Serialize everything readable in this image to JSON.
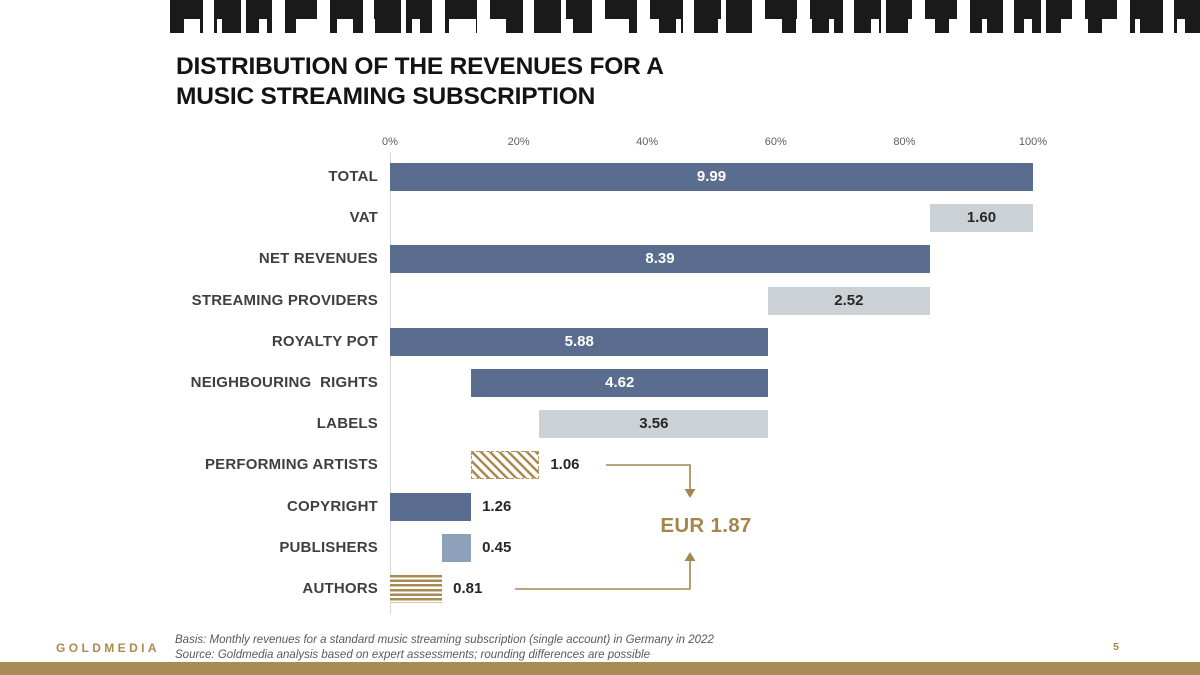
{
  "slide": {
    "title_line1": "DISTRIBUTION OF THE REVENUES FOR A",
    "title_line2": "MUSIC STREAMING SUBSCRIPTION",
    "logo_text": "GOLDMEDIA",
    "footnote_line1": "Basis: Monthly revenues for a standard music streaming subscription (single account) in Germany in 2022",
    "footnote_line2": "Source: Goldmedia analysis based on expert assessments; rounding differences are possible",
    "page_number": "5"
  },
  "colors": {
    "bar_slate": "#5a6d8e",
    "bar_light_gray": "#ccd1d6",
    "bar_light_slate": "#8ea1bb",
    "hatch_gold": "#ab8a50",
    "accent_gold": "#a5874e",
    "bottom_band_gold": "#a98c55",
    "category_label": "#3f3f3f",
    "value_label": "#262626",
    "axis_tick": "#5f5f5f"
  },
  "chart_data": {
    "type": "bar",
    "orientation": "horizontal",
    "title": "DISTRIBUTION OF THE REVENUES FOR A MUSIC STREAMING SUBSCRIPTION",
    "xlabel": "",
    "ylabel": "",
    "unit": "EUR",
    "x_axis_ticks": [
      "0%",
      "20%",
      "40%",
      "60%",
      "80%",
      "100%"
    ],
    "x_axis_range_percent": [
      0,
      100
    ],
    "x_axis_range_eur": [
      0,
      9.99
    ],
    "grid": false,
    "legend": "none",
    "categories": [
      "TOTAL",
      "VAT",
      "NET REVENUES",
      "STREAMING PROVIDERS",
      "ROYALTY POT",
      "NEIGHBOURING  RIGHTS",
      "LABELS",
      "PERFORMING ARTISTS",
      "COPYRIGHT",
      "PUBLISHERS",
      "AUTHORS"
    ],
    "bars": [
      {
        "category": "TOTAL",
        "value": 9.99,
        "display": "9.99",
        "start": 0,
        "style": "slate",
        "label_pos": "inside"
      },
      {
        "category": "VAT",
        "value": 1.6,
        "display": "1.60",
        "start": 8.39,
        "style": "gray",
        "label_pos": "inside"
      },
      {
        "category": "NET REVENUES",
        "value": 8.39,
        "display": "8.39",
        "start": 0,
        "style": "slate",
        "label_pos": "inside"
      },
      {
        "category": "STREAMING PROVIDERS",
        "value": 2.52,
        "display": "2.52",
        "start": 5.87,
        "style": "gray",
        "label_pos": "inside"
      },
      {
        "category": "ROYALTY POT",
        "value": 5.88,
        "display": "5.88",
        "start": 0,
        "style": "slate",
        "label_pos": "inside"
      },
      {
        "category": "NEIGHBOURING  RIGHTS",
        "value": 4.62,
        "display": "4.62",
        "start": 1.26,
        "style": "slate",
        "label_pos": "inside"
      },
      {
        "category": "LABELS",
        "value": 3.56,
        "display": "3.56",
        "start": 2.32,
        "style": "gray",
        "label_pos": "inside"
      },
      {
        "category": "PERFORMING ARTISTS",
        "value": 1.06,
        "display": "1.06",
        "start": 1.26,
        "style": "hatch_diagonal",
        "label_pos": "outside"
      },
      {
        "category": "COPYRIGHT",
        "value": 1.26,
        "display": "1.26",
        "start": 0,
        "style": "slate",
        "label_pos": "outside"
      },
      {
        "category": "PUBLISHERS",
        "value": 0.45,
        "display": "0.45",
        "start": 0.81,
        "style": "light_slate",
        "label_pos": "outside"
      },
      {
        "category": "AUTHORS",
        "value": 0.81,
        "display": "0.81",
        "start": 0,
        "style": "hatch_horizontal",
        "label_pos": "outside"
      }
    ],
    "annotation": {
      "text": "EUR 1.87",
      "applies_to": [
        "PERFORMING ARTISTS",
        "AUTHORS"
      ]
    }
  }
}
